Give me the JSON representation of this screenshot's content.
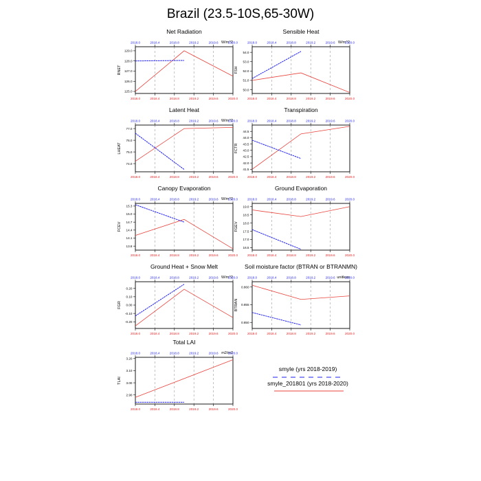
{
  "page": {
    "title": "Brazil (23.5-10S,65-30W)"
  },
  "colors": {
    "line_red": "#e8413a",
    "line_blue": "#1d1df0",
    "tick_red": "#e52020",
    "tick_blue": "#1d1df0",
    "grid": "#999999"
  },
  "legend": {
    "entries": [
      {
        "label": "smyle (yrs 2018-2019)",
        "color": "#1d1df0",
        "style": "dashed"
      },
      {
        "label": "smyle_201801 (yrs 2018-2020)",
        "color": "#e8413a",
        "style": "solid"
      }
    ]
  },
  "chart_data": [
    {
      "type": "line",
      "title": "Net Radiation",
      "ylabel": "RNET",
      "units": "W/m^2",
      "xlim": [
        2018.0,
        2020.0
      ],
      "ylim": [
        124.8,
        129.4
      ],
      "yticks": [
        "125.0",
        "126.0",
        "127.0",
        "128.0",
        "129.0"
      ],
      "xticks": [
        "2018.0",
        "2018.4",
        "2018.8",
        "2019.2",
        "2019.6",
        "2020.0"
      ],
      "series": [
        {
          "name": "smyle_201801 (yrs 2018-2020)",
          "x": [
            2018.0,
            2019.0,
            2020.0
          ],
          "y": [
            125.0,
            129.0,
            126.5
          ]
        },
        {
          "name": "smyle (yrs 2018-2019)",
          "x": [
            2018.0,
            2019.0
          ],
          "y": [
            128.0,
            128.05
          ]
        }
      ]
    },
    {
      "type": "line",
      "title": "Sensible Heat",
      "ylabel": "FSH",
      "units": "W/m^2",
      "xlim": [
        2018.0,
        2020.0
      ],
      "ylim": [
        49.6,
        54.6
      ],
      "yticks": [
        "50.0",
        "51.0",
        "52.0",
        "53.0",
        "54.0"
      ],
      "xticks": [
        "2018.0",
        "2018.4",
        "2018.8",
        "2019.2",
        "2019.6",
        "2020.0"
      ],
      "series": [
        {
          "name": "smyle_201801 (yrs 2018-2020)",
          "x": [
            2018.0,
            2019.0,
            2020.0
          ],
          "y": [
            51.0,
            51.8,
            49.7
          ]
        },
        {
          "name": "smyle (yrs 2018-2019)",
          "x": [
            2018.0,
            2019.0
          ],
          "y": [
            51.2,
            54.1
          ]
        }
      ]
    },
    {
      "type": "line",
      "title": "Latent Heat",
      "ylabel": "LHEAT",
      "units": "W/m^2",
      "xlim": [
        2018.0,
        2020.0
      ],
      "ylim": [
        73.3,
        77.3
      ],
      "yticks": [
        "74.0",
        "75.0",
        "76.0",
        "77.0"
      ],
      "xticks": [
        "2018.0",
        "2018.4",
        "2018.8",
        "2019.2",
        "2019.6",
        "2020.0"
      ],
      "series": [
        {
          "name": "smyle_201801 (yrs 2018-2020)",
          "x": [
            2018.0,
            2019.0,
            2020.0
          ],
          "y": [
            74.2,
            77.0,
            77.1
          ]
        },
        {
          "name": "smyle (yrs 2018-2019)",
          "x": [
            2018.0,
            2019.0
          ],
          "y": [
            76.6,
            73.5
          ]
        }
      ]
    },
    {
      "type": "line",
      "title": "Transpiration",
      "ylabel": "FCTR",
      "units": "",
      "xlim": [
        2018.0,
        2020.0
      ],
      "ylim": [
        41.3,
        45.0
      ],
      "yticks": [
        "41.5",
        "42.0",
        "42.5",
        "43.0",
        "43.5",
        "44.0",
        "44.5"
      ],
      "xticks": [
        "2018.0",
        "2018.4",
        "2018.8",
        "2019.2",
        "2019.6",
        "2020.0"
      ],
      "series": [
        {
          "name": "smyle_201801 (yrs 2018-2020)",
          "x": [
            2018.0,
            2019.0,
            2020.0
          ],
          "y": [
            41.5,
            44.3,
            44.9
          ]
        },
        {
          "name": "smyle (yrs 2018-2019)",
          "x": [
            2018.0,
            2019.0
          ],
          "y": [
            43.8,
            42.35
          ]
        }
      ]
    },
    {
      "type": "line",
      "title": "Canopy Evaporation",
      "ylabel": "FCEV",
      "units": "W/m^2",
      "xlim": [
        2018.0,
        2020.0
      ],
      "ylim": [
        13.65,
        15.4
      ],
      "yticks": [
        "13.8",
        "14.1",
        "14.4",
        "14.7",
        "15.0",
        "15.3"
      ],
      "xticks": [
        "2018.0",
        "2018.4",
        "2018.8",
        "2019.2",
        "2019.6",
        "2020.0"
      ],
      "series": [
        {
          "name": "smyle_201801 (yrs 2018-2020)",
          "x": [
            2018.0,
            2019.0,
            2020.0
          ],
          "y": [
            14.2,
            14.8,
            13.7
          ]
        },
        {
          "name": "smyle (yrs 2018-2019)",
          "x": [
            2018.0,
            2019.0
          ],
          "y": [
            15.35,
            14.7
          ]
        }
      ]
    },
    {
      "type": "line",
      "title": "Ground Evaporation",
      "ylabel": "FGEV",
      "units": "",
      "xlim": [
        2018.0,
        2020.0
      ],
      "ylim": [
        16.35,
        19.2
      ],
      "yticks": [
        "16.5",
        "17.0",
        "17.5",
        "18.0",
        "18.5",
        "19.0"
      ],
      "xticks": [
        "2018.0",
        "2018.4",
        "2018.8",
        "2019.2",
        "2019.6",
        "2020.0"
      ],
      "series": [
        {
          "name": "smyle_201801 (yrs 2018-2020)",
          "x": [
            2018.0,
            2019.0,
            2020.0
          ],
          "y": [
            18.8,
            18.4,
            19.0
          ]
        },
        {
          "name": "smyle (yrs 2018-2019)",
          "x": [
            2018.0,
            2019.0
          ],
          "y": [
            17.6,
            16.4
          ]
        }
      ]
    },
    {
      "type": "line",
      "title": "Ground Heat + Snow Melt",
      "ylabel": "FGR",
      "units": "W/m^2",
      "xlim": [
        2018.0,
        2020.0
      ],
      "ylim": [
        -0.28,
        0.28
      ],
      "yticks": [
        "-0.20",
        "-0.10",
        "0.00",
        "0.10",
        "0.20"
      ],
      "xticks": [
        "2018.0",
        "2018.4",
        "2018.8",
        "2019.2",
        "2019.6",
        "2020.0"
      ],
      "series": [
        {
          "name": "smyle_201801 (yrs 2018-2020)",
          "x": [
            2018.0,
            2019.0,
            2020.0
          ],
          "y": [
            -0.25,
            0.19,
            -0.15
          ]
        },
        {
          "name": "smyle (yrs 2018-2019)",
          "x": [
            2018.0,
            2019.0
          ],
          "y": [
            -0.13,
            0.25
          ]
        }
      ]
    },
    {
      "type": "line",
      "title": "Soil moisture factor (BTRAN or BTRANMN)",
      "ylabel": "BTRAN",
      "units": "unitless",
      "xlim": [
        2018.0,
        2020.0
      ],
      "ylim": [
        0.8483,
        0.8615
      ],
      "yticks": [
        "0.850",
        "0.855",
        "0.860"
      ],
      "xticks": [
        "2018.0",
        "2018.4",
        "2018.8",
        "2019.2",
        "2019.6",
        "2020.0"
      ],
      "series": [
        {
          "name": "smyle_201801 (yrs 2018-2020)",
          "x": [
            2018.0,
            2019.0,
            2020.0
          ],
          "y": [
            0.8605,
            0.8565,
            0.8575
          ]
        },
        {
          "name": "smyle (yrs 2018-2019)",
          "x": [
            2018.0,
            2019.0
          ],
          "y": [
            0.8528,
            0.8493
          ]
        }
      ]
    },
    {
      "type": "line",
      "title": "Total LAI",
      "ylabel": "TLAI",
      "units": "m2/m2",
      "xlim": [
        2018.0,
        2020.0
      ],
      "ylim": [
        2.825,
        3.21
      ],
      "yticks": [
        "2.90",
        "3.00",
        "3.10",
        "3.20"
      ],
      "xticks": [
        "2018.0",
        "2018.4",
        "2018.8",
        "2019.2",
        "2019.6",
        "2020.0"
      ],
      "series": [
        {
          "name": "smyle_201801 (yrs 2018-2020)",
          "x": [
            2018.0,
            2020.0
          ],
          "y": [
            2.88,
            3.19
          ]
        },
        {
          "name": "smyle (yrs 2018-2019)",
          "x": [
            2018.0,
            2019.0
          ],
          "y": [
            2.84,
            2.84
          ]
        }
      ]
    }
  ]
}
